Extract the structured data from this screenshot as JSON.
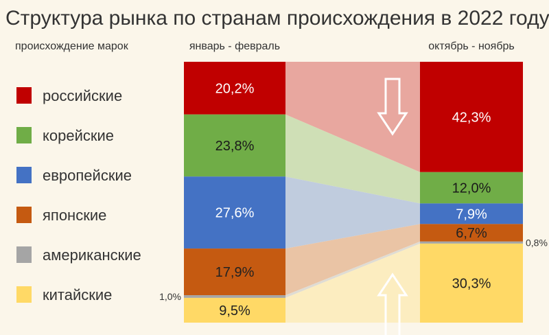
{
  "chart_data": {
    "type": "stacked-bar",
    "title": "Структура рынка по странам происхождения в 2022 году",
    "legend_title": "происхождение марок",
    "categories": [
      "январь - февраль",
      "октябрь - ноябрь"
    ],
    "unit": "%",
    "series": [
      {
        "name": "российские",
        "color": "#c00000",
        "values": [
          20.2,
          42.3
        ],
        "labels": [
          "20,2%",
          "42,3%"
        ]
      },
      {
        "name": "корейские",
        "color": "#70ad47",
        "values": [
          23.8,
          12.0
        ],
        "labels": [
          "23,8%",
          "12,0%"
        ]
      },
      {
        "name": "европейские",
        "color": "#4472c4",
        "values": [
          27.6,
          7.9
        ],
        "labels": [
          "27,6%",
          "7,9%"
        ]
      },
      {
        "name": "японские",
        "color": "#c55a11",
        "values": [
          17.9,
          6.7
        ],
        "labels": [
          "17,9%",
          "6,7%"
        ]
      },
      {
        "name": "американские",
        "color": "#a5a5a5",
        "values": [
          1.0,
          0.8
        ],
        "labels": [
          "1,0%",
          "0,8%"
        ]
      },
      {
        "name": "китайские",
        "color": "#ffd966",
        "values": [
          9.5,
          30.3
        ],
        "labels": [
          "9,5%",
          "30,3%"
        ]
      }
    ],
    "legend_position": "left",
    "annotations": [
      {
        "type": "arrow",
        "direction": "down",
        "series": "российские"
      },
      {
        "type": "arrow",
        "direction": "up",
        "series": "китайские"
      }
    ]
  }
}
